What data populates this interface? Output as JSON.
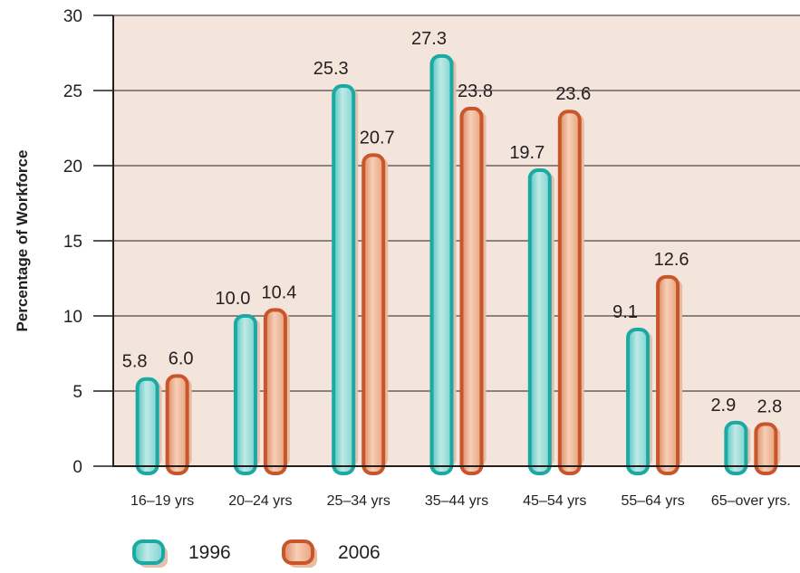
{
  "chart_data": {
    "type": "bar",
    "ylabel": "Percentage of Workforce",
    "xlabel": "",
    "categories": [
      "16–19 yrs",
      "20–24 yrs",
      "25–34 yrs",
      "35–44 yrs",
      "45–54 yrs",
      "55–64 yrs",
      "65–over yrs."
    ],
    "series": [
      {
        "name": "1996",
        "values": [
          5.8,
          10.0,
          25.3,
          27.3,
          19.7,
          9.1,
          2.9
        ],
        "labels": [
          "5.8",
          "10.0",
          "25.3",
          "27.3",
          "19.7",
          "9.1",
          "2.9"
        ],
        "color": "#1aa9a3"
      },
      {
        "name": "2006",
        "values": [
          6.0,
          10.4,
          20.7,
          23.8,
          23.6,
          12.6,
          2.8
        ],
        "labels": [
          "6.0",
          "10.4",
          "20.7",
          "23.8",
          "23.6",
          "12.6",
          "2.8"
        ],
        "color": "#c8562a"
      }
    ],
    "yticks": [
      "0",
      "5",
      "10",
      "15",
      "20",
      "25",
      "30"
    ],
    "ylim": [
      0,
      30
    ],
    "grid": true,
    "legend_position": "bottom-left",
    "plot_background": "#f3e4dc"
  }
}
